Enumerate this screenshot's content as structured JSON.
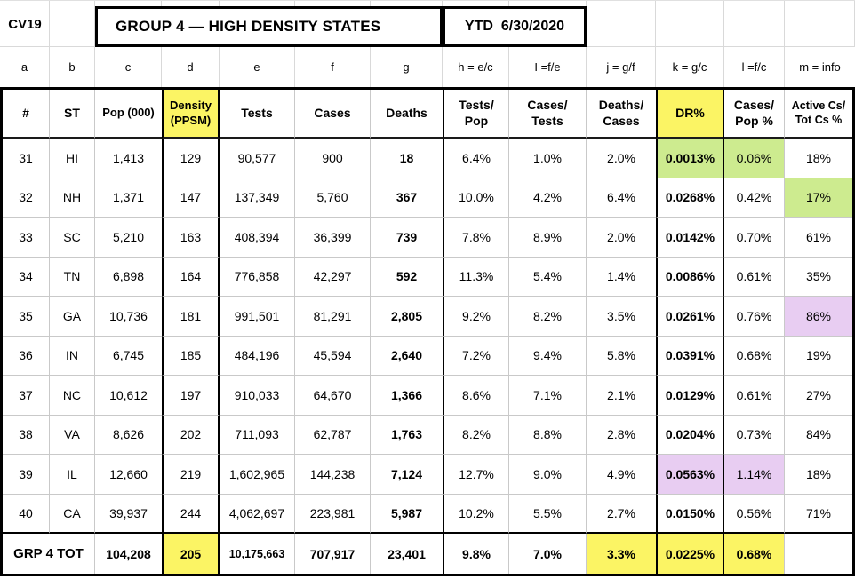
{
  "title": {
    "doc_code": "CV19",
    "group_title": "GROUP 4 — HIGH DENSITY STATES",
    "period": "YTD  6/30/2020"
  },
  "formula_row": [
    "a",
    "b",
    "c",
    "d",
    "e",
    "f",
    "g",
    "h = e/c",
    "I =f/e",
    "j = g/f",
    "k = g/c",
    "l =f/c",
    "m = info"
  ],
  "columns": [
    {
      "key": "num",
      "label": "#"
    },
    {
      "key": "st",
      "label": "ST"
    },
    {
      "key": "pop",
      "label": "Pop (000)"
    },
    {
      "key": "density",
      "label": "Density\n(PPSM)",
      "hl": "yellow"
    },
    {
      "key": "tests",
      "label": "Tests"
    },
    {
      "key": "cases",
      "label": "Cases"
    },
    {
      "key": "deaths",
      "label": "Deaths"
    },
    {
      "key": "tests_pop",
      "label": "Tests/\nPop"
    },
    {
      "key": "cases_tests",
      "label": "Cases/\nTests"
    },
    {
      "key": "deaths_cases",
      "label": "Deaths/\nCases"
    },
    {
      "key": "dr",
      "label": "DR%",
      "hl": "yellow"
    },
    {
      "key": "cases_pop",
      "label": "Cases/\nPop %"
    },
    {
      "key": "active",
      "label": "Active Cs/\nTot Cs %"
    }
  ],
  "rows": [
    {
      "num": "31",
      "st": "HI",
      "pop": "1,413",
      "density": "129",
      "tests": "90,577",
      "cases": "900",
      "deaths": "18",
      "tests_pop": "6.4%",
      "cases_tests": "1.0%",
      "deaths_cases": "2.0%",
      "dr": "0.0013%",
      "cases_pop": "0.06%",
      "active": "18%",
      "hl": {
        "dr": "green",
        "cases_pop": "green"
      }
    },
    {
      "num": "32",
      "st": "NH",
      "pop": "1,371",
      "density": "147",
      "tests": "137,349",
      "cases": "5,760",
      "deaths": "367",
      "tests_pop": "10.0%",
      "cases_tests": "4.2%",
      "deaths_cases": "6.4%",
      "dr": "0.0268%",
      "cases_pop": "0.42%",
      "active": "17%",
      "hl": {
        "active": "green"
      }
    },
    {
      "num": "33",
      "st": "SC",
      "pop": "5,210",
      "density": "163",
      "tests": "408,394",
      "cases": "36,399",
      "deaths": "739",
      "tests_pop": "7.8%",
      "cases_tests": "8.9%",
      "deaths_cases": "2.0%",
      "dr": "0.0142%",
      "cases_pop": "0.70%",
      "active": "61%",
      "hl": {}
    },
    {
      "num": "34",
      "st": "TN",
      "pop": "6,898",
      "density": "164",
      "tests": "776,858",
      "cases": "42,297",
      "deaths": "592",
      "tests_pop": "11.3%",
      "cases_tests": "5.4%",
      "deaths_cases": "1.4%",
      "dr": "0.0086%",
      "cases_pop": "0.61%",
      "active": "35%",
      "hl": {}
    },
    {
      "num": "35",
      "st": "GA",
      "pop": "10,736",
      "density": "181",
      "tests": "991,501",
      "cases": "81,291",
      "deaths": "2,805",
      "tests_pop": "9.2%",
      "cases_tests": "8.2%",
      "deaths_cases": "3.5%",
      "dr": "0.0261%",
      "cases_pop": "0.76%",
      "active": "86%",
      "hl": {
        "active": "purple"
      }
    },
    {
      "num": "36",
      "st": "IN",
      "pop": "6,745",
      "density": "185",
      "tests": "484,196",
      "cases": "45,594",
      "deaths": "2,640",
      "tests_pop": "7.2%",
      "cases_tests": "9.4%",
      "deaths_cases": "5.8%",
      "dr": "0.0391%",
      "cases_pop": "0.68%",
      "active": "19%",
      "hl": {}
    },
    {
      "num": "37",
      "st": "NC",
      "pop": "10,612",
      "density": "197",
      "tests": "910,033",
      "cases": "64,670",
      "deaths": "1,366",
      "tests_pop": "8.6%",
      "cases_tests": "7.1%",
      "deaths_cases": "2.1%",
      "dr": "0.0129%",
      "cases_pop": "0.61%",
      "active": "27%",
      "hl": {}
    },
    {
      "num": "38",
      "st": "VA",
      "pop": "8,626",
      "density": "202",
      "tests": "711,093",
      "cases": "62,787",
      "deaths": "1,763",
      "tests_pop": "8.2%",
      "cases_tests": "8.8%",
      "deaths_cases": "2.8%",
      "dr": "0.0204%",
      "cases_pop": "0.73%",
      "active": "84%",
      "hl": {}
    },
    {
      "num": "39",
      "st": "IL",
      "pop": "12,660",
      "density": "219",
      "tests": "1,602,965",
      "cases": "144,238",
      "deaths": "7,124",
      "tests_pop": "12.7%",
      "cases_tests": "9.0%",
      "deaths_cases": "4.9%",
      "dr": "0.0563%",
      "cases_pop": "1.14%",
      "active": "18%",
      "hl": {
        "dr": "purple",
        "cases_pop": "purple"
      }
    },
    {
      "num": "40",
      "st": "CA",
      "pop": "39,937",
      "density": "244",
      "tests": "4,062,697",
      "cases": "223,981",
      "deaths": "5,987",
      "tests_pop": "10.2%",
      "cases_tests": "5.5%",
      "deaths_cases": "2.7%",
      "dr": "0.0150%",
      "cases_pop": "0.56%",
      "active": "71%",
      "hl": {}
    }
  ],
  "total_row": {
    "label": "GRP 4 TOT",
    "pop": "104,208",
    "density": "205",
    "tests": "10,175,663",
    "cases": "707,917",
    "deaths": "23,401",
    "tests_pop": "9.8%",
    "cases_tests": "7.0%",
    "deaths_cases": "3.3%",
    "dr": "0.0225%",
    "cases_pop": "0.68%",
    "active": "",
    "hl": {
      "density": "yellow",
      "deaths_cases": "yellow",
      "dr": "yellow",
      "cases_pop": "yellow"
    }
  },
  "colors": {
    "highlight_yellow": "#FBF464",
    "highlight_green": "#CDEB8F",
    "highlight_purple": "#E8CDF2",
    "grid_line": "#C9C9C9",
    "border_black": "#000000"
  }
}
